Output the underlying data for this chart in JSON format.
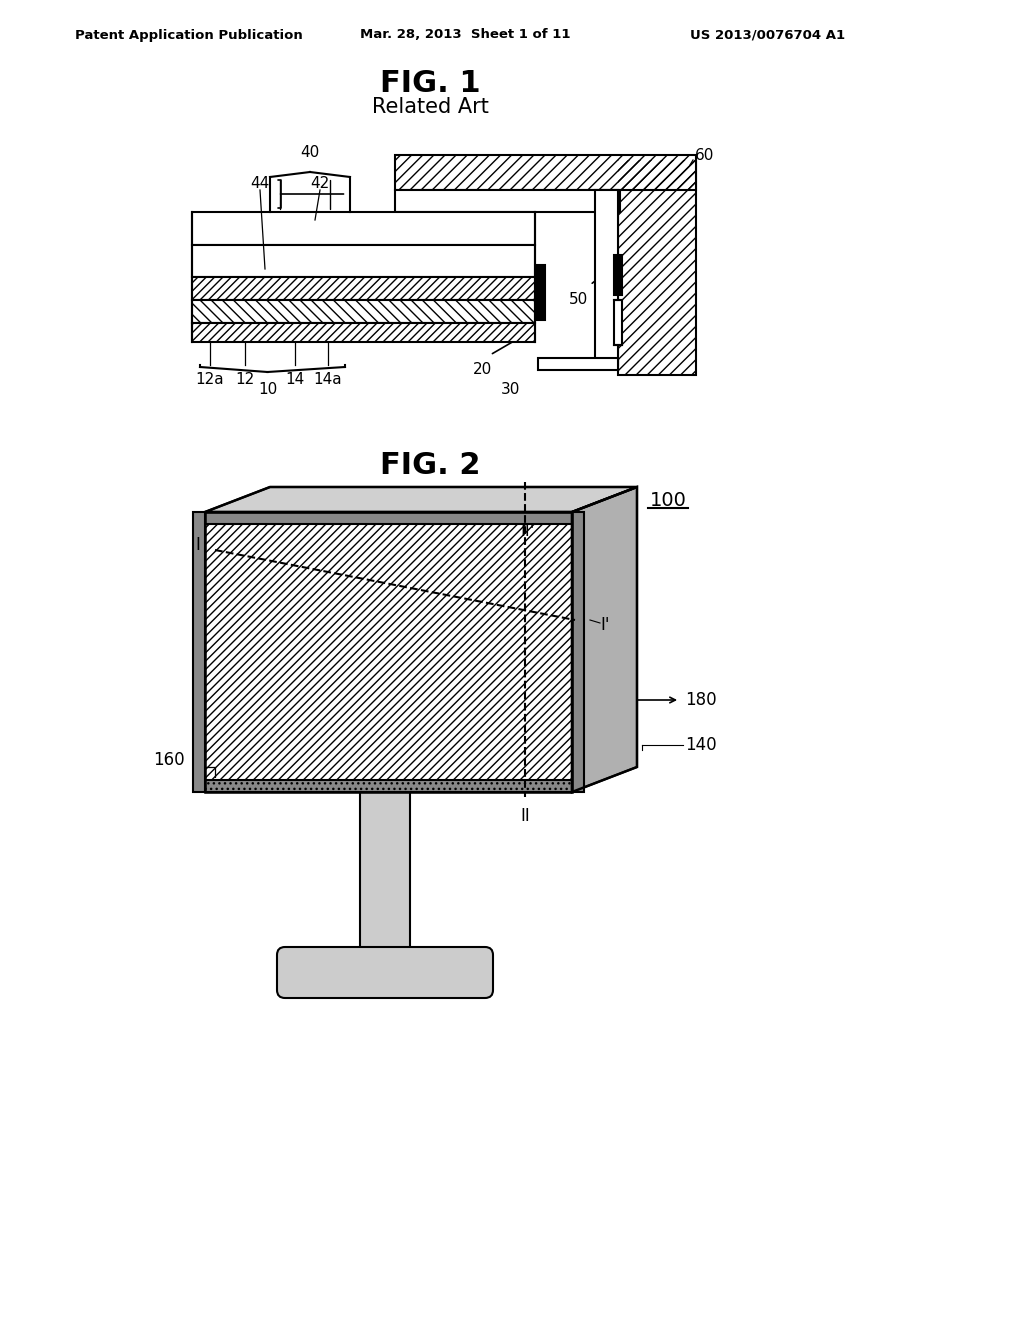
{
  "fig_title": "FIG. 1",
  "fig_subtitle": "Related Art",
  "fig2_title": "FIG. 2",
  "header_left": "Patent Application Publication",
  "header_mid": "Mar. 28, 2013  Sheet 1 of 11",
  "header_right": "US 2013/0076704 A1",
  "bg_color": "#ffffff",
  "line_color": "#000000",
  "hatch_color": "#000000"
}
